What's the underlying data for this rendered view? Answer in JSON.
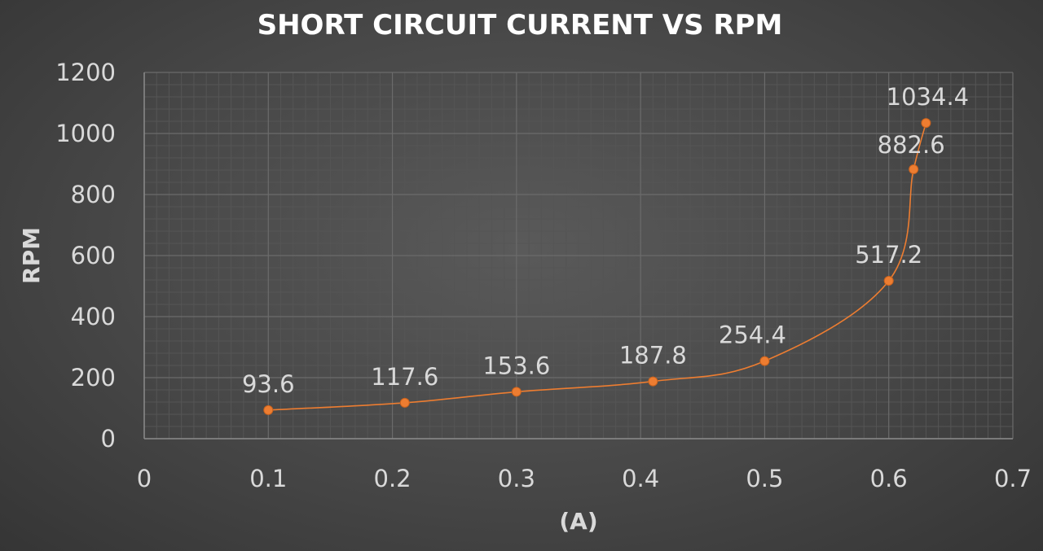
{
  "chart_data": {
    "type": "scatter",
    "title": "SHORT CIRCUIT CURRENT VS RPM",
    "xlabel": "(A)",
    "ylabel": "RPM",
    "xlim": [
      0,
      0.7
    ],
    "ylim": [
      0,
      1200
    ],
    "xticks": [
      "0",
      "0.1",
      "0.2",
      "0.3",
      "0.4",
      "0.5",
      "0.6",
      "0.7"
    ],
    "yticks": [
      "0",
      "200",
      "400",
      "600",
      "800",
      "1000",
      "1200"
    ],
    "grid": true,
    "legend": "none",
    "series": [
      {
        "color": "#ed7d31",
        "line": "smooth",
        "x": [
          0.1,
          0.21,
          0.3,
          0.41,
          0.5,
          0.6,
          0.62,
          0.63
        ],
        "y": [
          93.6,
          117.6,
          153.6,
          187.8,
          254.4,
          517.2,
          882.6,
          1034.4
        ],
        "labels": [
          "93.6",
          "117.6",
          "153.6",
          "187.8",
          "254.4",
          "517.2",
          "882.6",
          "1034.4"
        ]
      }
    ],
    "colors": {
      "gridline": "#6b6b6b",
      "minor_gridline": "#555555",
      "axis": "#8a8a8a",
      "text": "#d9d9d9",
      "title": "#ffffff"
    }
  }
}
